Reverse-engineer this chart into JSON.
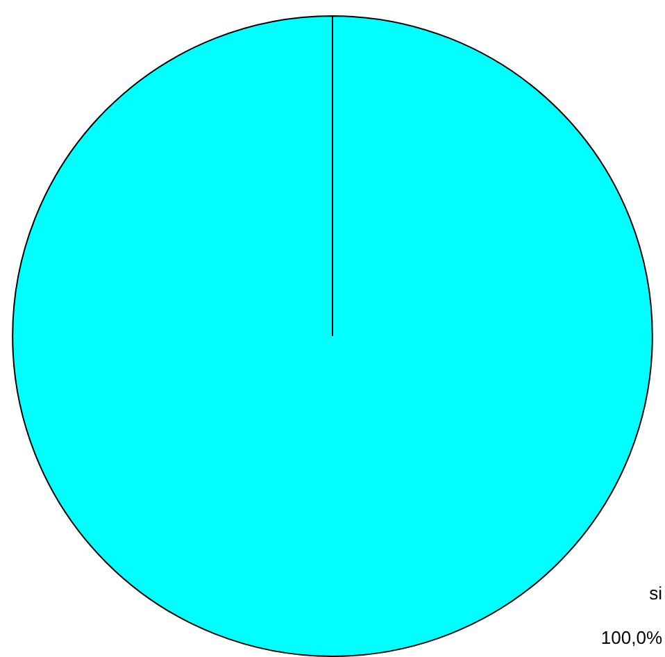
{
  "chart_data": {
    "type": "pie",
    "categories": [
      "si"
    ],
    "values": [
      100
    ],
    "colors": [
      "#00ffff"
    ],
    "value_labels": [
      "100,0%"
    ]
  }
}
